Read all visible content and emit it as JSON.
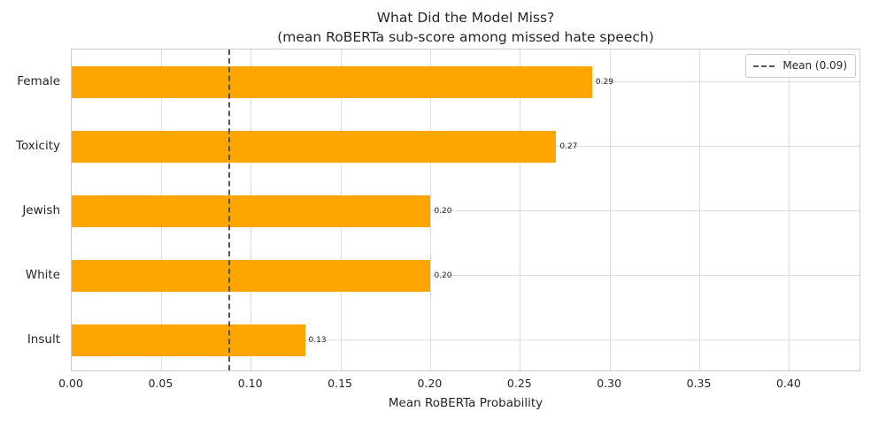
{
  "chart_data": {
    "type": "bar",
    "orientation": "horizontal",
    "title": "What Did the Model Miss?",
    "subtitle": "(mean RoBERTa sub-score among missed hate speech)",
    "categories": [
      "Female",
      "Toxicity",
      "Jewish",
      "White",
      "Insult"
    ],
    "values": [
      0.29,
      0.27,
      0.2,
      0.2,
      0.13
    ],
    "value_labels": [
      "0.29",
      "0.27",
      "0.20",
      "0.20",
      "0.13"
    ],
    "xlabel": "Mean RoBERTa Probability",
    "ylabel": "",
    "xlim": [
      0,
      0.44
    ],
    "xticks": [
      0.0,
      0.05,
      0.1,
      0.15,
      0.2,
      0.25,
      0.3,
      0.35,
      0.4
    ],
    "xtick_labels": [
      "0.00",
      "0.05",
      "0.10",
      "0.15",
      "0.20",
      "0.25",
      "0.30",
      "0.35",
      "0.40"
    ],
    "grid": true,
    "bar_color": "#FFA500",
    "mean_line": {
      "value": 0.088,
      "label": "Mean (0.09)",
      "color": "#555555",
      "style": "dashed"
    },
    "legend": {
      "position": "upper right",
      "entries": [
        "Mean (0.09)"
      ]
    }
  }
}
